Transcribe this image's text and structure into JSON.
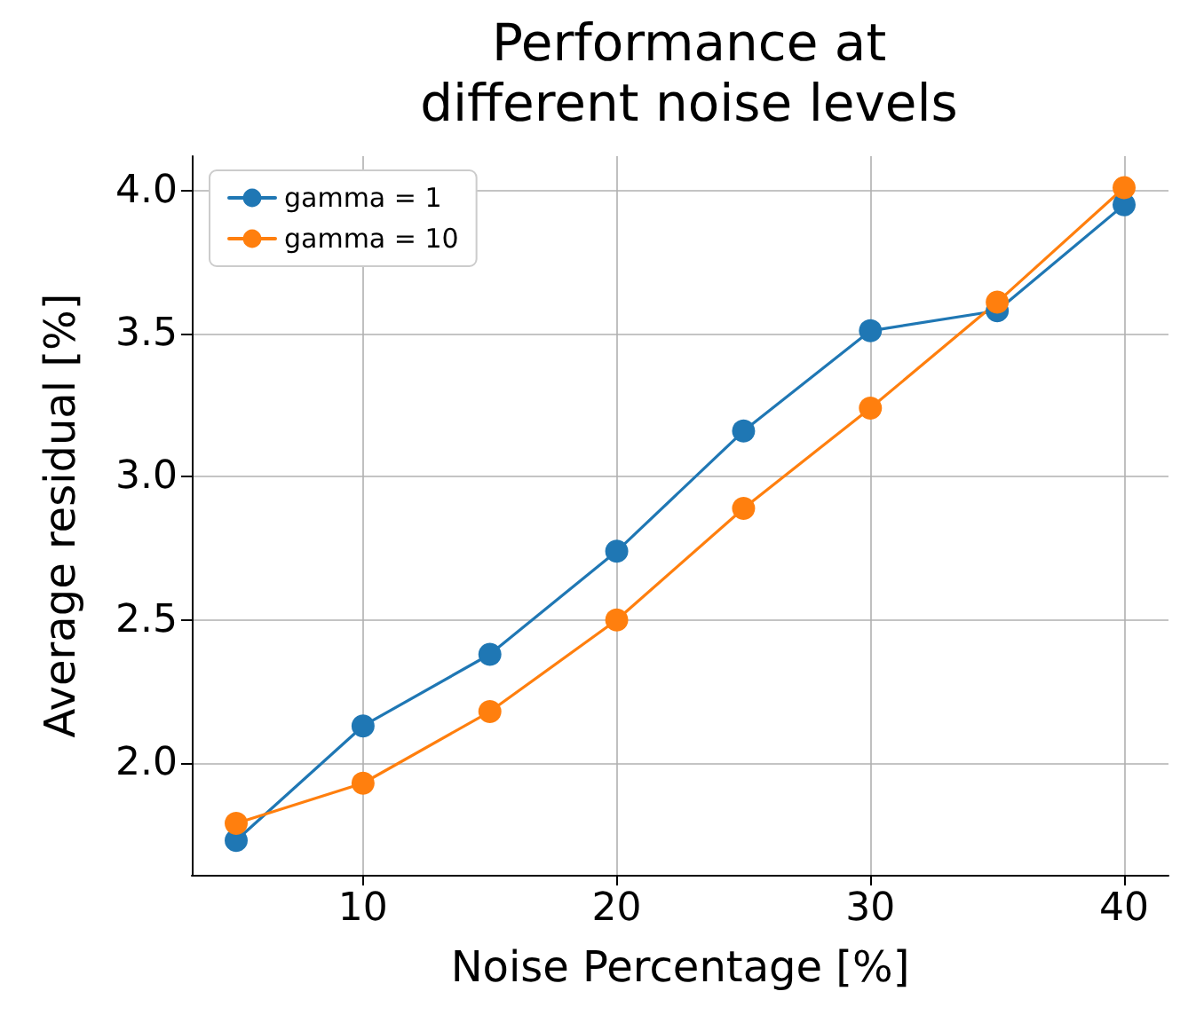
{
  "chart_data": {
    "type": "line",
    "title": "Performance at\ndifferent noise levels",
    "xlabel": "Noise Percentage [%]",
    "ylabel": "Average residual [%]",
    "x": [
      5,
      10,
      15,
      20,
      25,
      30,
      35,
      40
    ],
    "series": [
      {
        "name": "gamma = 1",
        "color": "#1f77b4",
        "values": [
          1.73,
          2.13,
          2.38,
          2.74,
          3.16,
          3.51,
          3.58,
          3.95
        ]
      },
      {
        "name": "gamma = 10",
        "color": "#ff7f0e",
        "values": [
          1.79,
          1.93,
          2.18,
          2.5,
          2.89,
          3.24,
          3.61,
          4.01
        ]
      }
    ],
    "xlim": [
      3.25,
      41.75
    ],
    "ylim": [
      1.61,
      4.12
    ],
    "xticks": [
      10,
      20,
      30,
      40
    ],
    "yticks": [
      {
        "value": 2,
        "label": "2.0"
      },
      2.5,
      {
        "value": 3,
        "label": "3.0"
      },
      3.5,
      {
        "value": 4,
        "label": "4.0"
      }
    ],
    "grid": true,
    "legend": "top left",
    "marker": "circle",
    "line_style": "solid"
  }
}
